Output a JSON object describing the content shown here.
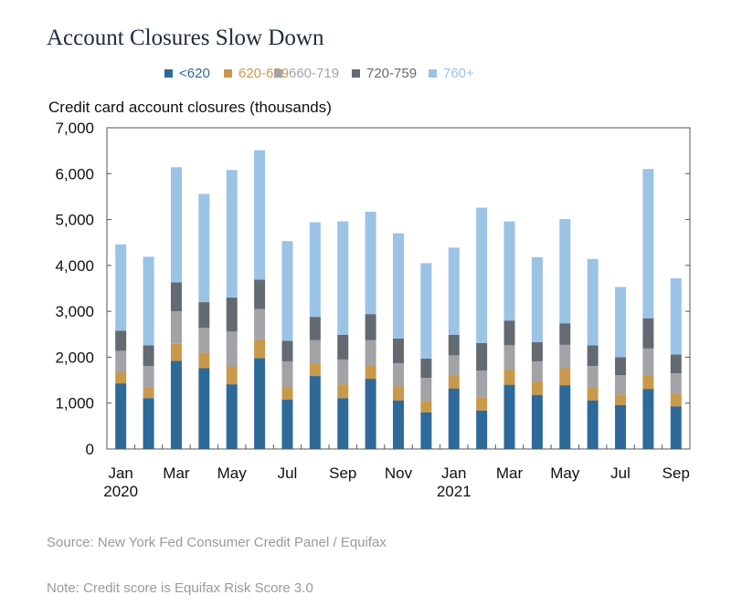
{
  "title": "Account Closures Slow Down",
  "source": "Source: New York Fed Consumer Credit Panel / Equifax",
  "note": "Note: Credit score is Equifax Risk Score 3.0",
  "chart_data": {
    "type": "bar",
    "stacked": true,
    "ylabel": "Credit card account closures (thousands)",
    "ylim": [
      0,
      7000
    ],
    "yticks": [
      "0",
      "1,000",
      "2,000",
      "3,000",
      "4,000",
      "5,000",
      "6,000",
      "7,000"
    ],
    "categories": [
      "Jan 2020",
      "Feb 2020",
      "Mar 2020",
      "Apr 2020",
      "May 2020",
      "Jun 2020",
      "Jul 2020",
      "Aug 2020",
      "Sep 2020",
      "Oct 2020",
      "Nov 2020",
      "Dec 2020",
      "Jan 2021",
      "Feb 2021",
      "Mar 2021",
      "Apr 2021",
      "May 2021",
      "Jun 2021",
      "Jul 2021",
      "Aug 2021",
      "Sep 2021"
    ],
    "xticklabels": [
      {
        "label": "Jan",
        "sub": "2020",
        "index": 0
      },
      {
        "label": "Mar",
        "index": 2
      },
      {
        "label": "May",
        "index": 4
      },
      {
        "label": "Jul",
        "index": 6
      },
      {
        "label": "Sep",
        "index": 8
      },
      {
        "label": "Nov",
        "index": 10
      },
      {
        "label": "Jan",
        "sub": "2021",
        "index": 12
      },
      {
        "label": "Mar",
        "index": 14
      },
      {
        "label": "May",
        "index": 16
      },
      {
        "label": "Jul",
        "index": 18
      },
      {
        "label": "Sep",
        "index": 20
      }
    ],
    "legend_position": "top",
    "grid": false,
    "series": [
      {
        "name": "<620",
        "color": "#2e6a99",
        "values": [
          1430,
          1110,
          1920,
          1760,
          1410,
          1980,
          1080,
          1590,
          1110,
          1530,
          1060,
          800,
          1320,
          840,
          1400,
          1180,
          1390,
          1060,
          960,
          1310,
          930
        ]
      },
      {
        "name": "620-659",
        "color": "#c9994b",
        "values": [
          240,
          230,
          370,
          340,
          390,
          410,
          270,
          280,
          300,
          300,
          310,
          250,
          280,
          290,
          330,
          290,
          370,
          290,
          230,
          300,
          280
        ]
      },
      {
        "name": "660-719",
        "color": "#a2a3a7",
        "values": [
          470,
          470,
          710,
          540,
          760,
          660,
          560,
          500,
          540,
          540,
          500,
          500,
          440,
          580,
          530,
          440,
          510,
          460,
          420,
          580,
          440
        ]
      },
      {
        "name": "720-759",
        "color": "#646a72",
        "values": [
          440,
          450,
          630,
          560,
          740,
          640,
          450,
          510,
          540,
          570,
          540,
          420,
          450,
          600,
          540,
          420,
          470,
          450,
          390,
          660,
          410
        ]
      },
      {
        "name": "760+",
        "color": "#9bc3e6",
        "values": [
          1880,
          1930,
          2510,
          2360,
          2780,
          2820,
          2170,
          2060,
          2470,
          2230,
          2290,
          2080,
          1900,
          2950,
          2160,
          1850,
          2270,
          1880,
          1530,
          3250,
          1660
        ]
      }
    ]
  }
}
